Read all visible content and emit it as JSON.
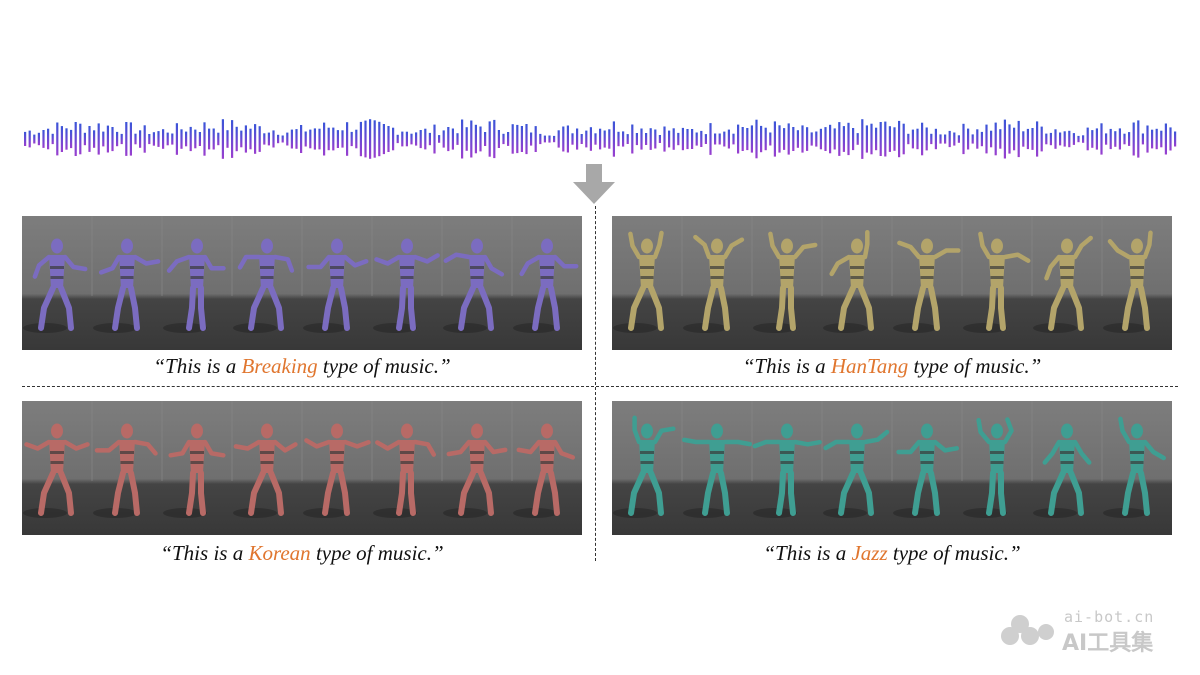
{
  "waveform": {
    "color_top": "#3a55d8",
    "color_bottom": "#9a3fcf",
    "icon": "audio-waveform"
  },
  "arrow": {
    "color": "#a8a8a8",
    "icon": "down-arrow"
  },
  "panels": [
    {
      "id": "breaking",
      "figure_color": "#7b6cc0",
      "caption_before": "“This is a ",
      "genre": "Breaking",
      "caption_after": " type of music.”"
    },
    {
      "id": "hantang",
      "figure_color": "#b3a46a",
      "caption_before": "“This is a ",
      "genre": "HanTang",
      "caption_after": " type of music.”"
    },
    {
      "id": "korean",
      "figure_color": "#b86a66",
      "caption_before": "“This is a ",
      "genre": "Korean",
      "caption_after": " type of music.”"
    },
    {
      "id": "jazz",
      "figure_color": "#3f9e92",
      "caption_before": "“This is a ",
      "genre": "Jazz",
      "caption_after": " type of music.”"
    }
  ],
  "accent_color": "#e0762f",
  "watermark": {
    "url": "ai-bot.cn",
    "name": "AI工具集",
    "icon": "cloud-logo-icon"
  }
}
